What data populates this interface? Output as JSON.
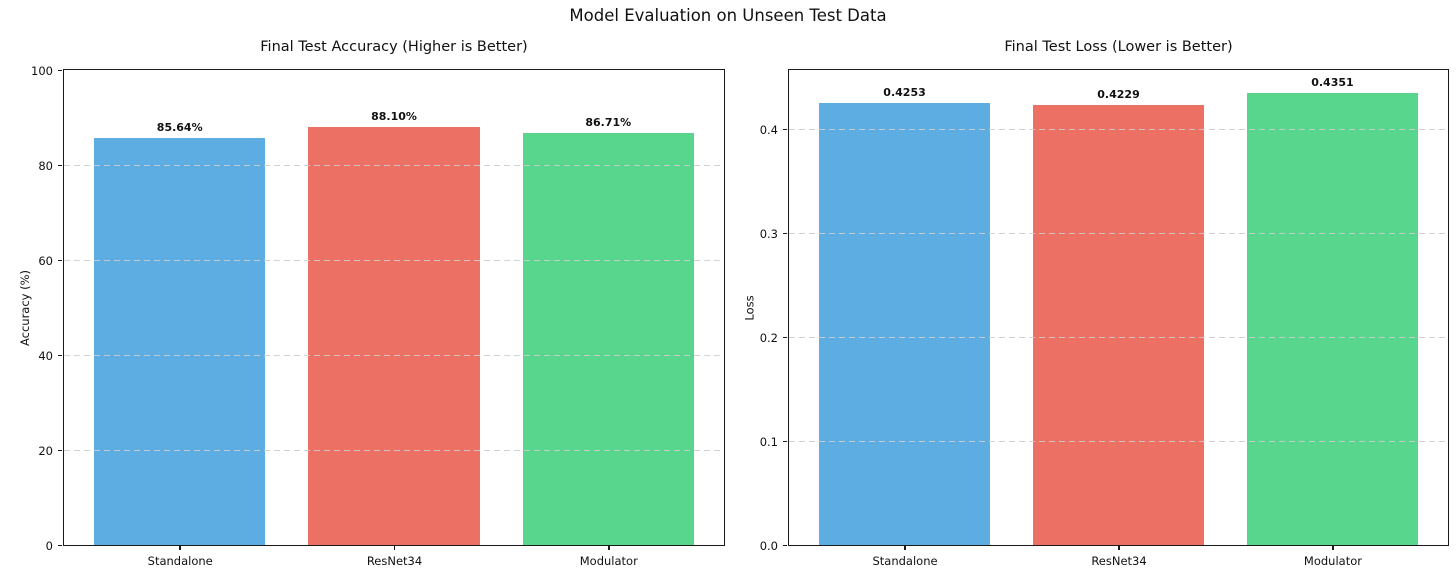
{
  "figure": {
    "suptitle": "Model Evaluation on Unseen Test Data"
  },
  "style": {
    "bar_colors": [
      "#5DADE2",
      "#EC7063",
      "#58D68D"
    ],
    "grid_color": "#cdcdcd",
    "spine_color": "#1a1a1a",
    "text_color": "#111111",
    "background": "#ffffff"
  },
  "chart_data": [
    {
      "type": "bar",
      "title": "Final Test Accuracy (Higher is Better)",
      "xlabel": "",
      "ylabel": "Accuracy (%)",
      "categories": [
        "Standalone",
        "ResNet34",
        "Modulator"
      ],
      "values": [
        85.64,
        88.1,
        86.71
      ],
      "bar_labels": [
        "85.64%",
        "88.10%",
        "86.71%"
      ],
      "ylim": [
        0,
        100
      ],
      "yticks": [
        0,
        20,
        40,
        60,
        80,
        100
      ],
      "ytick_labels": [
        "0",
        "20",
        "40",
        "60",
        "80",
        "100"
      ],
      "grid": "horizontal-dashed",
      "legend": "none"
    },
    {
      "type": "bar",
      "title": "Final Test Loss (Lower is Better)",
      "xlabel": "",
      "ylabel": "Loss",
      "categories": [
        "Standalone",
        "ResNet34",
        "Modulator"
      ],
      "values": [
        0.4253,
        0.4229,
        0.4351
      ],
      "bar_labels": [
        "0.4253",
        "0.4229",
        "0.4351"
      ],
      "ylim": [
        0,
        0.457
      ],
      "yticks": [
        0.0,
        0.1,
        0.2,
        0.3,
        0.4
      ],
      "ytick_labels": [
        "0.0",
        "0.1",
        "0.2",
        "0.3",
        "0.4"
      ],
      "grid": "horizontal-dashed",
      "legend": "none"
    }
  ]
}
